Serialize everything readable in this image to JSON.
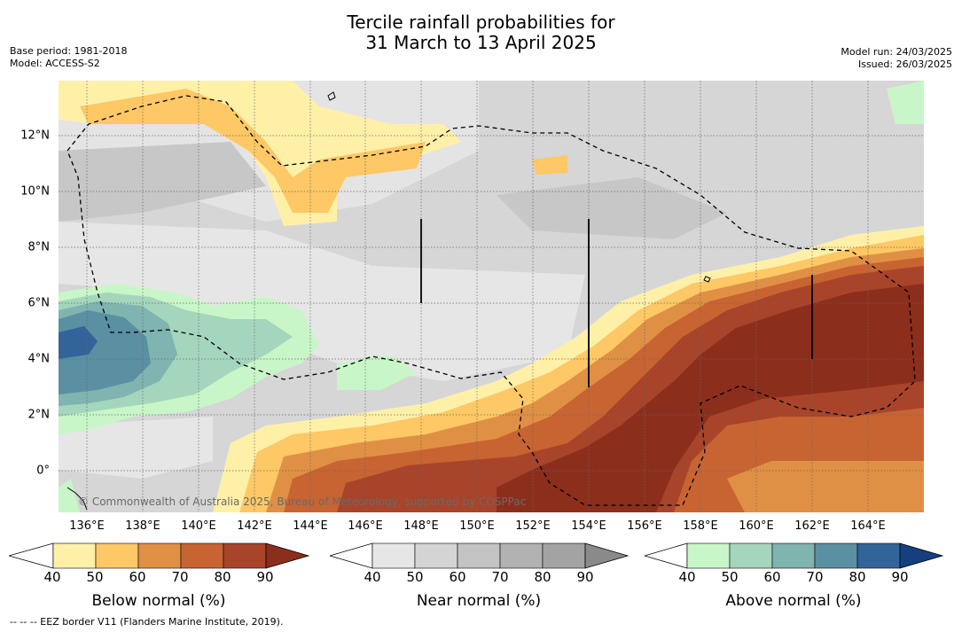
{
  "title_line1": "Tercile rainfall probabilities for",
  "title_line2": "31 March to 13 April 2025",
  "meta": {
    "base_period": "Base period: 1981-2018",
    "model": "Model: ACCESS-S2",
    "model_run": "Model run: 24/03/2025",
    "issued": "Issued: 26/03/2025"
  },
  "map": {
    "lon_labels": [
      "136°E",
      "138°E",
      "140°E",
      "142°E",
      "144°E",
      "146°E",
      "148°E",
      "150°E",
      "152°E",
      "154°E",
      "156°E",
      "158°E",
      "160°E",
      "162°E",
      "164°E"
    ],
    "lat_labels": [
      "12°N",
      "10°N",
      "8°N",
      "6°N",
      "4°N",
      "2°N",
      "0°"
    ],
    "copyright": "© Commonwealth of Australia 2025, Bureau of Meteorology, supported by COSPPac"
  },
  "colorbars": [
    {
      "title": "Below normal (%)",
      "ticks": [
        "40",
        "50",
        "60",
        "70",
        "80",
        "90"
      ],
      "colors": [
        "#fff0a8",
        "#fdc865",
        "#e09045",
        "#c86432",
        "#a8442a"
      ],
      "over": "#8c2e1c"
    },
    {
      "title": "Near normal (%)",
      "ticks": [
        "40",
        "50",
        "60",
        "70",
        "80",
        "90"
      ],
      "colors": [
        "#e6e6e6",
        "#d4d4d4",
        "#c3c3c3",
        "#b2b2b2",
        "#a3a3a3"
      ],
      "over": "#8a8a8a"
    },
    {
      "title": "Above normal (%)",
      "ticks": [
        "40",
        "50",
        "60",
        "70",
        "80",
        "90"
      ],
      "colors": [
        "#c8f6c8",
        "#a4d6bd",
        "#7fb4b0",
        "#5a90a2",
        "#32649a"
      ],
      "over": "#163f80"
    }
  ],
  "footnote": "--  --  -- EEZ border V11 (Flanders Marine Institute, 2019)."
}
